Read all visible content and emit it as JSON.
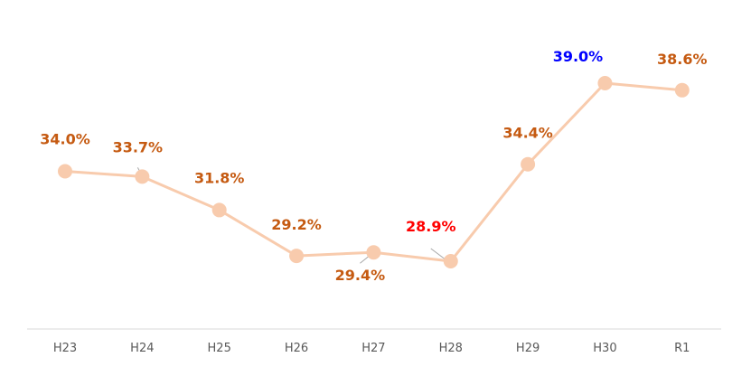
{
  "chart_data": {
    "type": "line",
    "categories": [
      "H23",
      "H24",
      "H25",
      "H26",
      "H27",
      "H28",
      "H29",
      "H30",
      "R1"
    ],
    "values": [
      34.0,
      33.7,
      31.8,
      29.2,
      29.4,
      28.9,
      34.4,
      39.0,
      38.6
    ],
    "data_labels": [
      "34.0%",
      "33.7%",
      "31.8%",
      "29.2%",
      "29.4%",
      "28.9%",
      "34.4%",
      "39.0%",
      "38.6%"
    ],
    "label_colors": [
      "#c55a11",
      "#c55a11",
      "#c55a11",
      "#c55a11",
      "#c55a11",
      "#ff0000",
      "#c55a11",
      "#0000ff",
      "#c55a11"
    ],
    "line_color": "#f8cbad",
    "marker_color": "#f8cbad",
    "ylim": [
      24,
      42
    ],
    "grid": false,
    "legend": "none"
  }
}
